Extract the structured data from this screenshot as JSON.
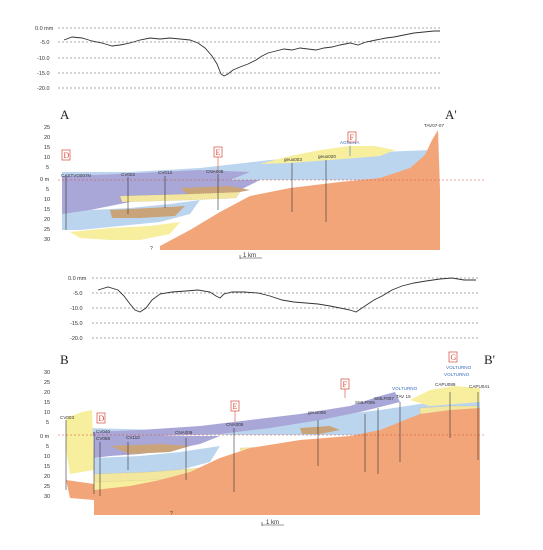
{
  "subsidence_top": {
    "ticks": [
      "0.0 mm",
      "-5.0",
      "-10.0",
      "-15.0",
      "-20.0"
    ]
  },
  "section_a": {
    "left_label": "A",
    "right_label": "A'",
    "ticks": [
      "25",
      "20",
      "15",
      "10",
      "5",
      "0 m",
      "5",
      "10",
      "15",
      "20",
      "25",
      "30"
    ],
    "markers": [
      "D",
      "E",
      "F"
    ],
    "wells": [
      "CASTVO007N",
      "CV002",
      "CV013",
      "CNA008",
      "geuo003",
      "geuo020",
      "AGNENA",
      "TAV07-07"
    ],
    "scale": "1 km",
    "question": "?"
  },
  "subsidence_bottom": {
    "ticks": [
      "0.0 mm",
      "-5.0",
      "-10.0",
      "-15.0",
      "-20.0"
    ]
  },
  "section_b": {
    "left_label": "B",
    "right_label": "B'",
    "ticks": [
      "30",
      "25",
      "20",
      "15",
      "10",
      "5",
      "0 m",
      "5",
      "10",
      "15",
      "20",
      "25",
      "30"
    ],
    "markers": [
      "D",
      "E",
      "F",
      "G"
    ],
    "wells": [
      "CV003",
      "CV040",
      "CV068",
      "CV110",
      "CNA009",
      "CNA005",
      "geuo006",
      "SMLF005",
      "SMLF007",
      "TAV 15",
      "VOLTURNO",
      "CAPU089",
      "CAPU041",
      "VOLTURNO",
      "VOLTURNO"
    ],
    "scale": "1 km",
    "question": "?"
  }
}
